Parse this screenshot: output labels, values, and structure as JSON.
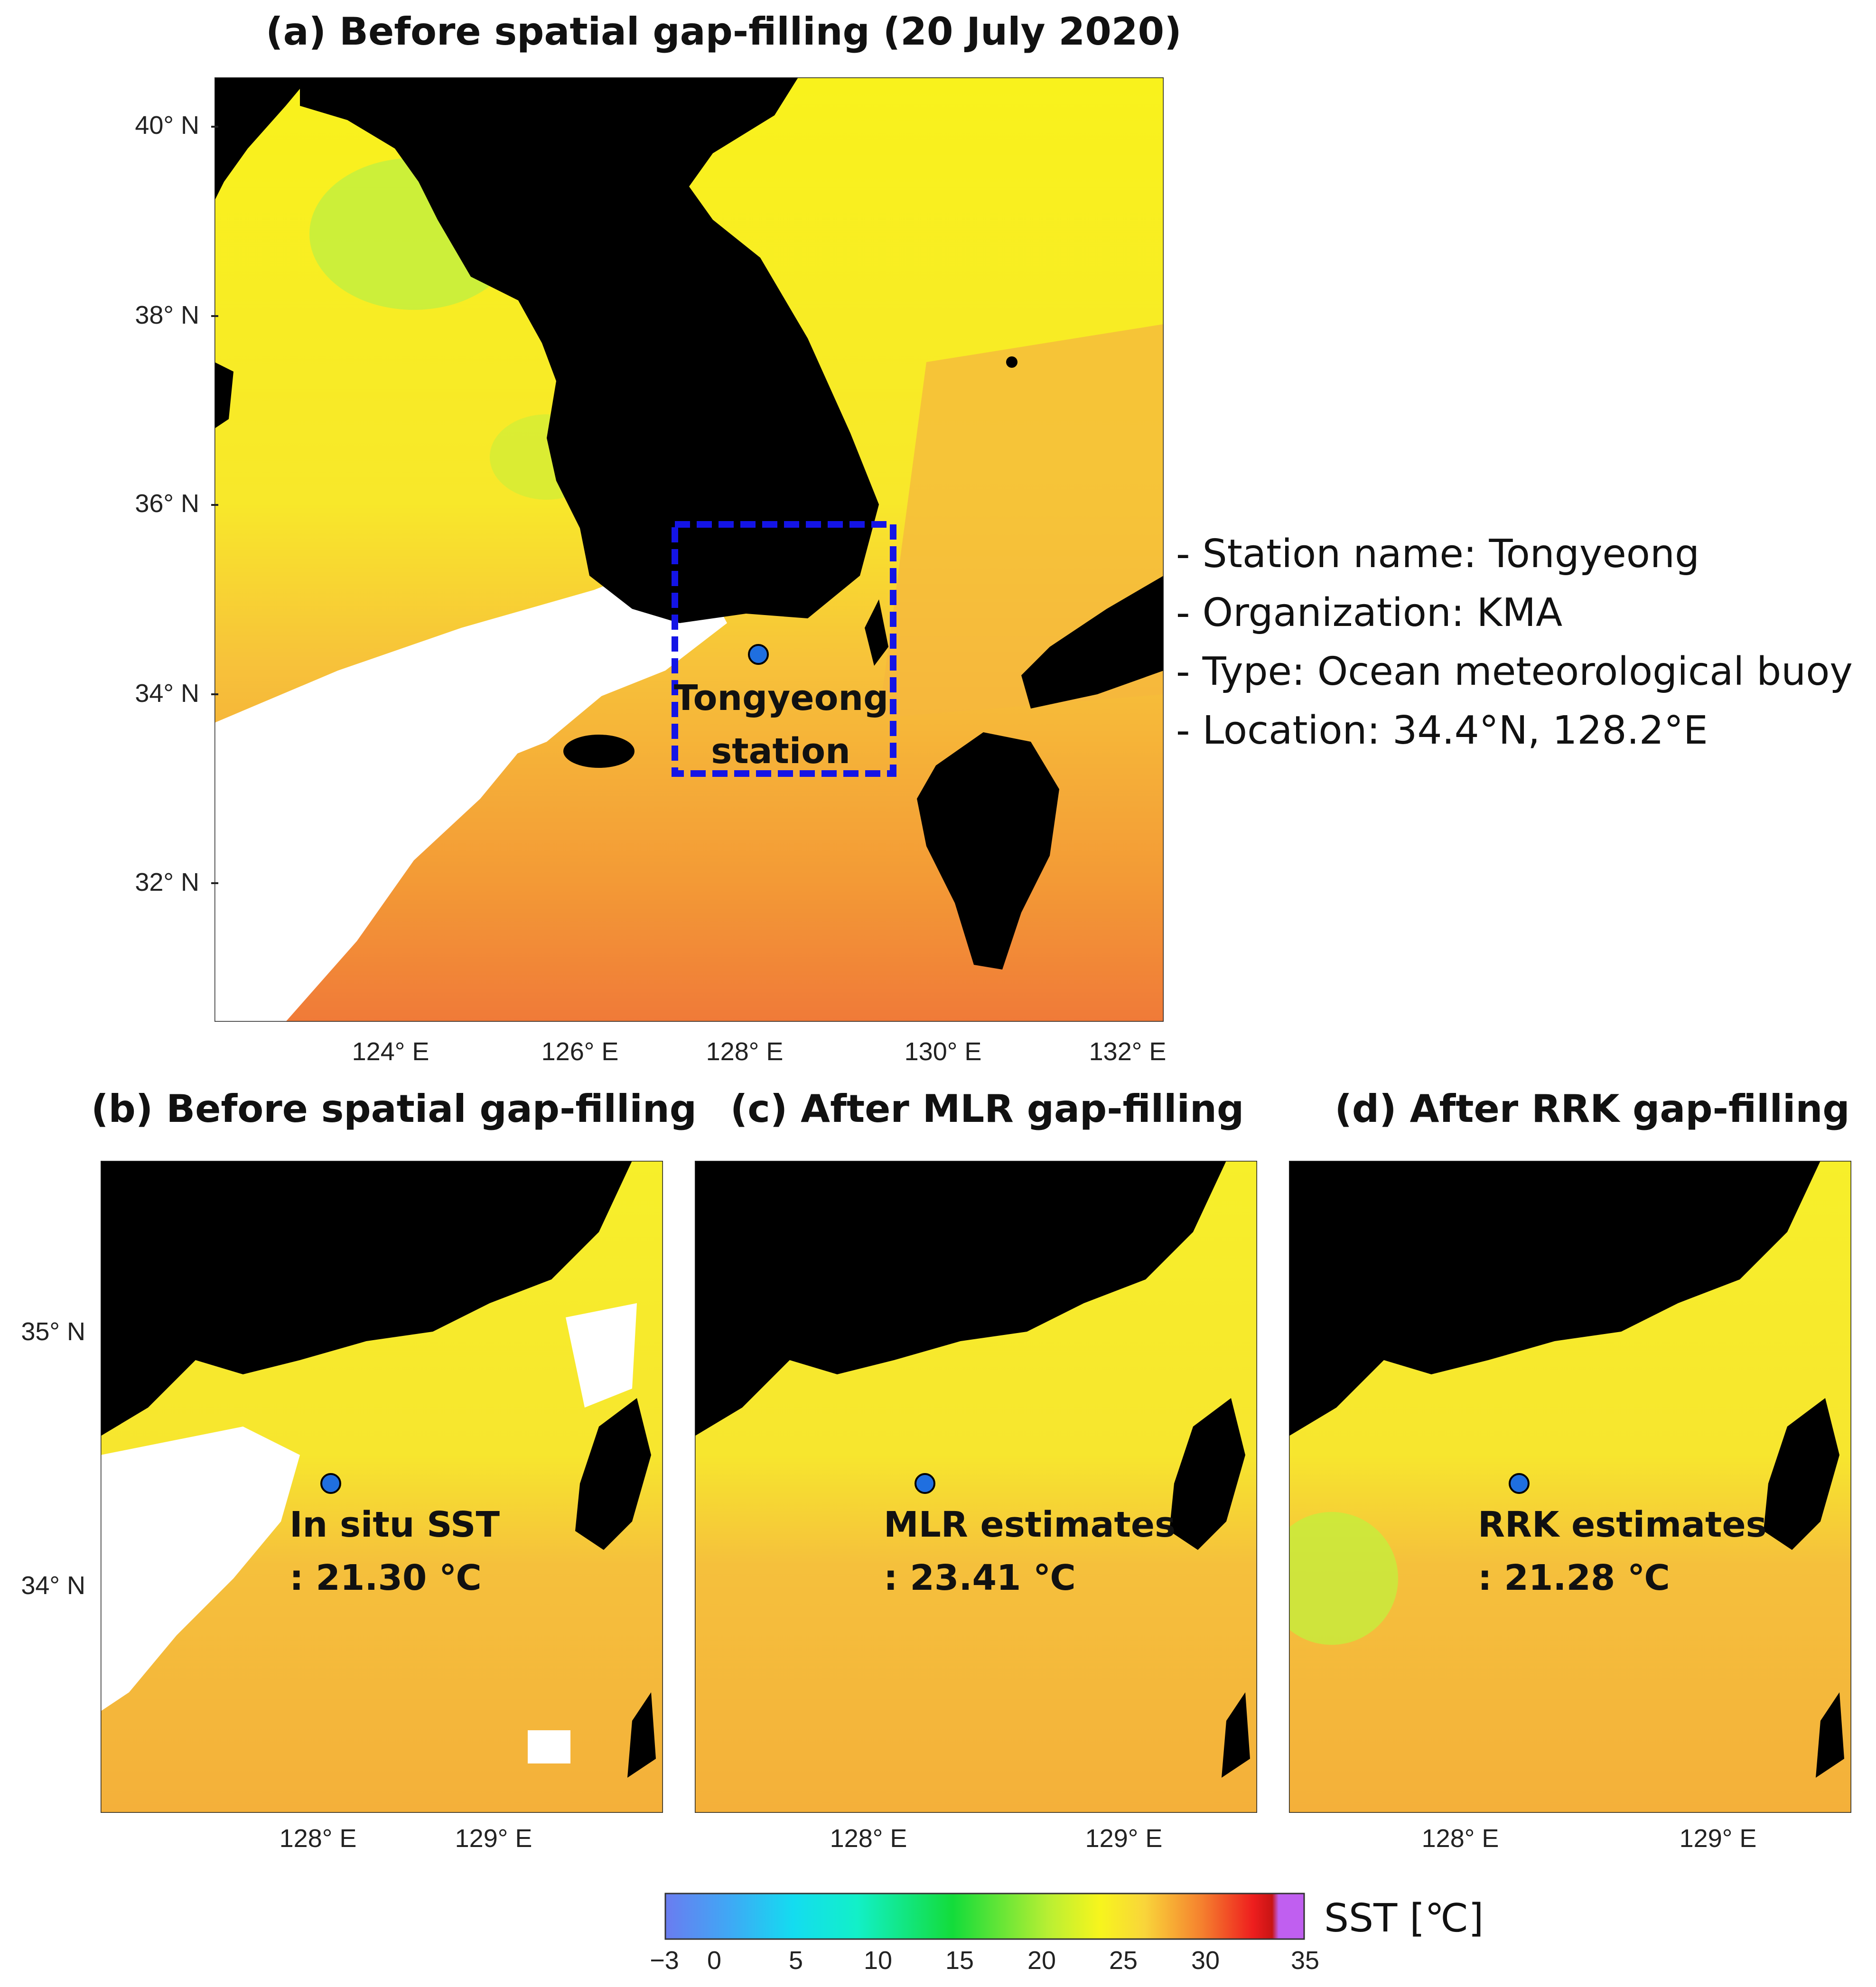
{
  "panel_a": {
    "title": "(a) Before spatial gap-filling (20 July 2020)",
    "y_ticks": [
      "40° N",
      "38° N",
      "36° N",
      "34° N",
      "32° N"
    ],
    "x_ticks": [
      "124° E",
      "126° E",
      "128° E",
      "130° E",
      "132° E"
    ],
    "station_label_line1": "Tongyeong",
    "station_label_line2": "station"
  },
  "station_info": [
    "- Station name: Tongyeong",
    "- Organization: KMA",
    "- Type: Ocean meteorological buoy",
    "- Location: 34.4°N, 128.2°E"
  ],
  "panel_b": {
    "title": "(b) Before spatial gap-filling",
    "value_label": "In situ SST",
    "value_text": ": 21.30 ℃"
  },
  "panel_c": {
    "title": "(c) After MLR gap-filling",
    "value_label": "MLR estimates",
    "value_text": ": 23.41 ℃"
  },
  "panel_d": {
    "title": "(d) After RRK gap-filling",
    "value_label": "RRK estimates",
    "value_text": ": 21.28 ℃"
  },
  "zoom_y_ticks": [
    "35° N",
    "34° N"
  ],
  "zoom_x_ticks": [
    "128° E",
    "129° E"
  ],
  "colorbar": {
    "label": "SST [℃]",
    "ticks": [
      "−3",
      "0",
      "5",
      "10",
      "15",
      "20",
      "25",
      "30",
      "35"
    ]
  },
  "colors": {
    "land": "#000000",
    "cloud_gap": "#ffffff",
    "warm_sea": "#f5a830",
    "mid_sea": "#f9d53a",
    "cool_sea": "#f7f51d",
    "green_sea": "#b9ef33",
    "station_marker": "#1f6fe0",
    "box_outline": "#1414e6"
  }
}
